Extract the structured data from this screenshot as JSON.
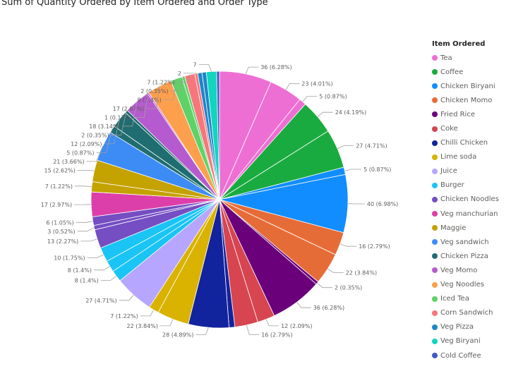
{
  "chart_data": {
    "type": "pie",
    "title": "Sum of Quantity Ordered by Item Ordered and Order Type",
    "legend_title": "Item Ordered",
    "legend_position": "right",
    "legend": [
      {
        "name": "Tea",
        "color": "#EE6FD3"
      },
      {
        "name": "Coffee",
        "color": "#1AAB40"
      },
      {
        "name": "Chicken Biryani",
        "color": "#118DFF"
      },
      {
        "name": "Chicken Momo",
        "color": "#E66C37"
      },
      {
        "name": "Fried Rice",
        "color": "#6B007B"
      },
      {
        "name": "Coke",
        "color": "#D64550"
      },
      {
        "name": "Chilli Chicken",
        "color": "#12239E"
      },
      {
        "name": "Lime soda",
        "color": "#D9B300"
      },
      {
        "name": "Juice",
        "color": "#B6A6FF"
      },
      {
        "name": "Burger",
        "color": "#1AC4F5"
      },
      {
        "name": "Chicken Noodles",
        "color": "#744EC2"
      },
      {
        "name": "Veg manchurian",
        "color": "#DC3FA9"
      },
      {
        "name": "Maggie",
        "color": "#C4A200"
      },
      {
        "name": "Veg sandwich",
        "color": "#3D8CF5"
      },
      {
        "name": "Chicken Pizza",
        "color": "#1F6D70"
      },
      {
        "name": "Veg Momo",
        "color": "#B65BCF"
      },
      {
        "name": "Veg Noodles",
        "color": "#FE9F4E"
      },
      {
        "name": "Iced Tea",
        "color": "#5ED267"
      },
      {
        "name": "Corn Sandwich",
        "color": "#F7767C"
      },
      {
        "name": "Veg Pizza",
        "color": "#1D86C8"
      },
      {
        "name": "Veg Biryani",
        "color": "#11D5BE"
      },
      {
        "name": "Cold Coffee",
        "color": "#3F5CC6"
      }
    ],
    "slices": [
      {
        "item": "Tea",
        "value": 36,
        "label": "36 (6.28%)"
      },
      {
        "item": "Tea",
        "value": 23,
        "label": "23 (4.01%)"
      },
      {
        "item": "Tea",
        "value": 5,
        "label": "5 (0.87%)"
      },
      {
        "item": "Coffee",
        "value": 24,
        "label": "24 (4.19%)"
      },
      {
        "item": "Coffee",
        "value": 27,
        "label": "27 (4.71%)"
      },
      {
        "item": "Chicken Biryani",
        "value": 5,
        "label": "5 (0.87%)"
      },
      {
        "item": "Chicken Biryani",
        "value": 40,
        "label": "40 (6.98%)"
      },
      {
        "item": "Chicken Momo",
        "value": 16,
        "label": "16 (2.79%)"
      },
      {
        "item": "Chicken Momo",
        "value": 22,
        "label": "22 (3.84%)"
      },
      {
        "item": "Fried Rice",
        "value": 2,
        "label": "2 (0.35%)"
      },
      {
        "item": "Fried Rice",
        "value": 36,
        "label": "36 (6.28%)"
      },
      {
        "item": "Coke",
        "value": 12,
        "label": "12 (2.09%)"
      },
      {
        "item": "Coke",
        "value": 16,
        "label": "16 (2.79%)"
      },
      {
        "item": "Chilli Chicken",
        "value": 4,
        "label": ""
      },
      {
        "item": "Chilli Chicken",
        "value": 28,
        "label": "28 (4.89%)"
      },
      {
        "item": "Lime soda",
        "value": 22,
        "label": "22 (3.84%)"
      },
      {
        "item": "Lime soda",
        "value": 7,
        "label": "7 (1.22%)"
      },
      {
        "item": "Juice",
        "value": 27,
        "label": "27 (4.71%)"
      },
      {
        "item": "Burger",
        "value": 8,
        "label": "8 (1.4%)"
      },
      {
        "item": "Burger",
        "value": 8,
        "label": "8 (1.4%)"
      },
      {
        "item": "Burger",
        "value": 10,
        "label": "10 (1.75%)"
      },
      {
        "item": "Chicken Noodles",
        "value": 13,
        "label": "13 (2.27%)"
      },
      {
        "item": "Chicken Noodles",
        "value": 3,
        "label": "3 (0.52%)"
      },
      {
        "item": "Chicken Noodles",
        "value": 6,
        "label": "6 (1.05%)"
      },
      {
        "item": "Veg manchurian",
        "value": 17,
        "label": "17 (2.97%)"
      },
      {
        "item": "Maggie",
        "value": 7,
        "label": "7 (1.22%)"
      },
      {
        "item": "Maggie",
        "value": 15,
        "label": "15 (2.62%)"
      },
      {
        "item": "Veg sandwich",
        "value": 21,
        "label": "21 (3.66%)"
      },
      {
        "item": "Chicken Pizza",
        "value": 5,
        "label": "5 (0.87%)"
      },
      {
        "item": "Chicken Pizza",
        "value": 12,
        "label": "12 (2.09%)"
      },
      {
        "item": "Chicken Pizza",
        "value": 2,
        "label": "2 (0.35%)"
      },
      {
        "item": "Veg Momo",
        "value": 18,
        "label": "18 (3.14%)"
      },
      {
        "item": "Veg Momo",
        "value": 1,
        "label": "1 (0.17%)"
      },
      {
        "item": "Veg Noodles",
        "value": 17,
        "label": "17 (2.97%)"
      },
      {
        "item": "Iced Tea",
        "value": 8,
        "label": "8 (1.4%)"
      },
      {
        "item": "Iced Tea",
        "value": 2,
        "label": "2 (0.35%)"
      },
      {
        "item": "Corn Sandwich",
        "value": 7,
        "label": "7 (1.22%)"
      },
      {
        "item": "Corn Sandwich",
        "value": 2,
        "label": "2"
      },
      {
        "item": "Veg Pizza",
        "value": 3,
        "label": ""
      },
      {
        "item": "Veg Pizza",
        "value": 3,
        "label": ""
      },
      {
        "item": "Veg Biryani",
        "value": 7,
        "label": "7"
      },
      {
        "item": "Cold Coffee",
        "value": 2,
        "label": ""
      }
    ]
  }
}
